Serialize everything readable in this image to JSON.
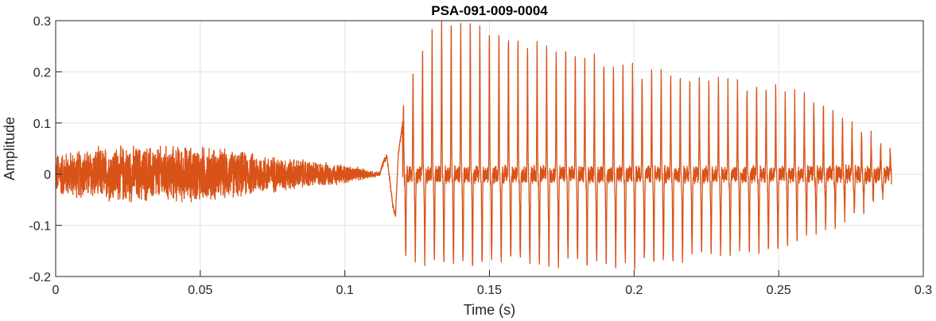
{
  "chart_data": {
    "type": "line",
    "title": "PSA-091-009-0004",
    "xlabel": "Time (s)",
    "ylabel": "Amplitude",
    "xlim": [
      0,
      0.3
    ],
    "ylim": [
      -0.2,
      0.3
    ],
    "grid": true,
    "x_ticks": [
      "0",
      "0.05",
      "0.1",
      "0.15",
      "0.2",
      "0.25",
      "0.3"
    ],
    "y_ticks": [
      "0.3",
      "0.2",
      "0.1",
      "0",
      "-0.1",
      "-0.2"
    ],
    "series": [
      {
        "color": "#d95319",
        "sample_rate_hz": 20000,
        "duration_s": 0.289,
        "segments": [
          {
            "type": "noise",
            "t_start": 0.0,
            "t_end": 0.112,
            "envelope_t": [
              0.0,
              0.02,
              0.05,
              0.08,
              0.1,
              0.112
            ],
            "envelope_amp": [
              0.045,
              0.06,
              0.06,
              0.035,
              0.02,
              0.004
            ]
          },
          {
            "type": "onset",
            "t_start": 0.112,
            "t_end": 0.12,
            "points_t": [
              0.112,
              0.1135,
              0.1145,
              0.1155,
              0.1165,
              0.1175,
              0.1185,
              0.12
            ],
            "points_y": [
              0.0,
              0.025,
              0.035,
              -0.01,
              -0.06,
              -0.08,
              0.04,
              0.1
            ]
          },
          {
            "type": "periodic",
            "t_start": 0.12,
            "t_end": 0.289,
            "period_s": 0.0033,
            "peak_env_t": [
              0.12,
              0.125,
              0.133,
              0.15,
              0.2,
              0.25,
              0.27,
              0.289
            ],
            "peak_env_y": [
              0.11,
              0.21,
              0.29,
              0.26,
              0.19,
              0.15,
              0.11,
              0.03
            ],
            "trough_env_t": [
              0.12,
              0.125,
              0.14,
              0.2,
              0.25,
              0.27,
              0.289
            ],
            "trough_env_y": [
              -0.15,
              -0.16,
              -0.17,
              -0.17,
              -0.14,
              -0.09,
              -0.03
            ]
          }
        ]
      }
    ]
  }
}
